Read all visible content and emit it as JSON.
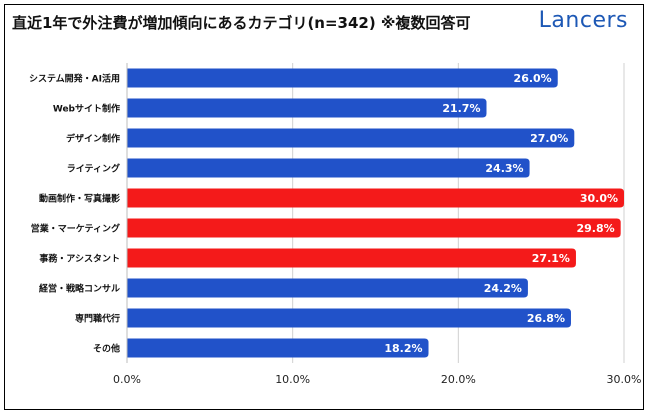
{
  "header": {
    "title": "直近1年で外注費が増加傾向にあるカテゴリ(n=342) ※複数回答可",
    "logo": "Lancers"
  },
  "chart_data": {
    "type": "bar",
    "orientation": "horizontal",
    "categories": [
      "システム開発・AI活用",
      "Webサイト制作",
      "デザイン制作",
      "ライティング",
      "動画制作・写真撮影",
      "営業・マーケティング",
      "事務・アシスタント",
      "経営・戦略コンサル",
      "専門職代行",
      "その他"
    ],
    "values": [
      26.0,
      21.7,
      27.0,
      24.3,
      30.0,
      29.8,
      27.1,
      24.2,
      26.8,
      18.2
    ],
    "value_labels": [
      "26.0%",
      "21.7%",
      "27.0%",
      "24.3%",
      "30.0%",
      "29.8%",
      "27.1%",
      "24.2%",
      "26.8%",
      "18.2%"
    ],
    "highlighted": [
      false,
      false,
      false,
      false,
      true,
      true,
      true,
      false,
      false,
      false
    ],
    "colors": {
      "default": "#2152c9",
      "highlight": "#f41a1a"
    },
    "xlim": [
      0,
      30
    ],
    "xticks": [
      0,
      10,
      20,
      30
    ],
    "xtick_labels": [
      "0.0%",
      "10.0%",
      "20.0%",
      "30.0%"
    ],
    "grid": "vertical"
  }
}
